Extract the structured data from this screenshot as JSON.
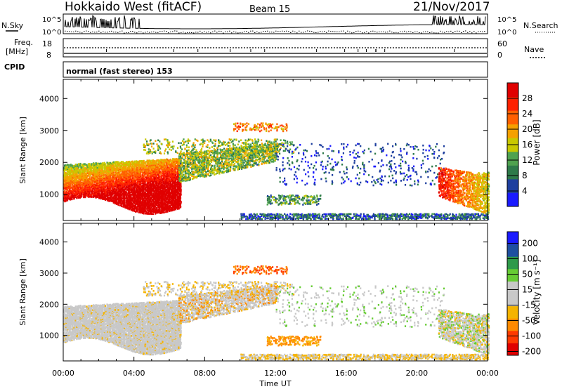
{
  "header": {
    "radar": "Hokkaido West (fitACF)",
    "beam": "Beam 15",
    "date": "21/Nov/2017"
  },
  "status_panels": {
    "nsky_label": "N.Sky",
    "nsearch_label": "N.Search",
    "noise_ticks": [
      "10^5",
      "10^0"
    ],
    "freq_label_1": "Freq.",
    "freq_label_2": "[MHz]",
    "freq_ticks": [
      "18",
      "8"
    ],
    "nave_label": "Nave",
    "nave_ticks": [
      "60",
      "0"
    ],
    "cpid_label": "CPID",
    "cpid_value": "normal (fast stereo) 153"
  },
  "colors": {
    "power_scale": [
      "#1a1aff",
      "#1e3f9e",
      "#2e7a4a",
      "#4fa24f",
      "#c8c800",
      "#f5a000",
      "#ff6000",
      "#ff2000",
      "#e00000"
    ],
    "velocity_scale": [
      "#e00000",
      "#ff3a00",
      "#ff8a00",
      "#f5b400",
      "#c8c8c8",
      "#c8c8c8",
      "#66cc33",
      "#2e9a4a",
      "#1e4fa0",
      "#1a1aff"
    ]
  },
  "chart_data": [
    {
      "type": "heatmap",
      "name": "power",
      "ylabel": "Slant Range [km]",
      "xlabel": "",
      "x_ticks": [
        "00:00",
        "04:00",
        "08:00",
        "12:00",
        "16:00",
        "20:00",
        "00:00"
      ],
      "y_ticks": [
        1000,
        2000,
        3000,
        4000
      ],
      "xlim_hours": [
        0,
        24
      ],
      "ylim_km": [
        180,
        4600
      ],
      "colorbar": {
        "label": "Power [dB]",
        "ticks": [
          "4",
          "8",
          "12",
          "16",
          "20",
          "24",
          "28"
        ],
        "range": [
          0,
          32
        ]
      }
    },
    {
      "type": "heatmap",
      "name": "velocity",
      "ylabel": "Slant Range [km]",
      "xlabel": "Time UT",
      "x_ticks": [
        "00:00",
        "04:00",
        "08:00",
        "12:00",
        "16:00",
        "20:00",
        "00:00"
      ],
      "y_ticks": [
        1000,
        2000,
        3000,
        4000
      ],
      "xlim_hours": [
        0,
        24
      ],
      "ylim_km": [
        180,
        4600
      ],
      "colorbar": {
        "label": "Velocity [m s⁻¹]",
        "ticks": [
          "200",
          "100",
          "50",
          "15",
          "-15",
          "-50",
          "-100",
          "-200"
        ],
        "range": [
          -250,
          250
        ]
      }
    }
  ]
}
